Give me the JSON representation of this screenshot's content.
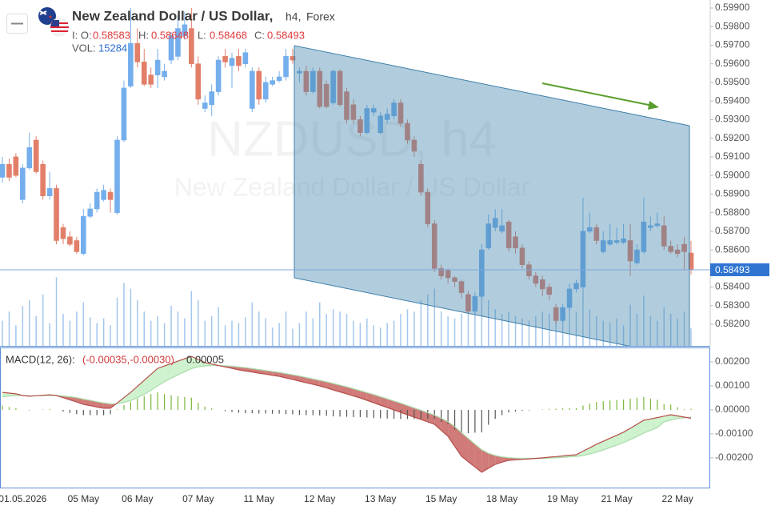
{
  "chart_data": {
    "type": "candlestick",
    "title": "New Zealand Dollar / US Dollar,",
    "timeframe": "h4,",
    "market": "Forex",
    "watermark_symbol": "NZDUSD, h4",
    "watermark_name": "New Zealand Dollar / US Dollar",
    "ohlc_labels": {
      "open": "I: O:",
      "high": "H:",
      "low": "L:",
      "close": "C:",
      "volume": "VOL:"
    },
    "up_color": "#74aeec",
    "down_color": "#e27f69",
    "volume_color": "#a3c6ee",
    "categories": [
      null,
      null,
      null,
      "01.05.2026",
      null,
      null,
      null,
      null,
      null,
      null,
      null,
      null,
      "05 May",
      null,
      null,
      null,
      null,
      null,
      null,
      null,
      "06 May",
      null,
      null,
      null,
      null,
      null,
      null,
      null,
      null,
      "07 May",
      null,
      null,
      null,
      null,
      null,
      null,
      null,
      null,
      "11 May",
      null,
      null,
      null,
      null,
      null,
      null,
      null,
      null,
      "12 May",
      null,
      null,
      null,
      null,
      null,
      null,
      null,
      null,
      "13 May",
      null,
      null,
      null,
      null,
      null,
      null,
      null,
      null,
      "15 May",
      null,
      null,
      null,
      null,
      null,
      null,
      null,
      null,
      "18 May",
      null,
      null,
      null,
      null,
      null,
      null,
      null,
      null,
      "19 May",
      null,
      null,
      null,
      null,
      null,
      null,
      null,
      "21 May",
      null,
      null,
      null,
      null,
      null,
      null,
      null,
      null,
      "22 May",
      null,
      null
    ],
    "open": [
      0.5899,
      0.5906,
      0.591,
      0.5887,
      0.5904,
      0.5919,
      0.5906,
      0.5889,
      0.5893,
      0.5872,
      0.5867,
      0.5865,
      0.5858,
      0.5878,
      0.5882,
      0.5887,
      0.5891,
      0.588,
      0.5919,
      0.5948,
      0.5971,
      0.5961,
      0.5954,
      0.5954,
      0.5953,
      0.5962,
      0.5964,
      0.5975,
      0.5979,
      0.596,
      0.5936,
      0.5938,
      0.5945,
      0.5964,
      0.5959,
      0.5964,
      0.596,
      0.5936,
      0.5956,
      0.5941,
      0.5949,
      0.5951,
      0.5953,
      0.5964,
      0.5955,
      0.5956,
      0.5945,
      0.5956,
      0.5949,
      0.5939,
      0.5956,
      0.5945,
      0.5938,
      0.593,
      0.5923,
      0.5934,
      0.5923,
      0.593,
      0.5932,
      0.5939,
      0.5928,
      0.5919,
      0.5906,
      0.5891,
      0.5874,
      0.585,
      0.5849,
      0.5845,
      0.5843,
      0.5836,
      0.5827,
      0.5835,
      0.5861,
      0.5872,
      0.587,
      0.5875,
      0.5867,
      0.5861,
      0.5852,
      0.5846,
      0.5844,
      0.584,
      0.5829,
      0.5822,
      0.5829,
      0.5839,
      0.584,
      0.587,
      0.5872,
      0.5859,
      0.5863,
      0.5864,
      0.5864,
      0.5865,
      0.5853,
      0.5859,
      0.5872,
      0.5873,
      0.5873,
      0.5862,
      0.586,
      0.5863,
      0.58583
    ],
    "high": [
      0.591,
      0.5909,
      0.5912,
      0.5906,
      0.5923,
      0.5921,
      0.5908,
      0.5902,
      0.5895,
      0.5874,
      0.587,
      0.5867,
      0.5882,
      0.5885,
      0.5893,
      0.5895,
      0.5893,
      0.5921,
      0.5951,
      0.599,
      0.5979,
      0.5968,
      0.5958,
      0.5968,
      0.596,
      0.5977,
      0.5986,
      0.5988,
      0.599,
      0.5964,
      0.5943,
      0.5949,
      0.5964,
      0.5968,
      0.5966,
      0.5968,
      0.5968,
      0.5958,
      0.5958,
      0.5953,
      0.5953,
      0.5956,
      0.5968,
      0.5968,
      0.5958,
      0.5959,
      0.5958,
      0.5958,
      0.5951,
      0.5957,
      0.5957,
      0.5947,
      0.5941,
      0.5932,
      0.5938,
      0.5938,
      0.5934,
      0.5936,
      0.5941,
      0.5941,
      0.593,
      0.5921,
      0.5908,
      0.5893,
      0.5876,
      0.5852,
      0.585,
      0.5846,
      0.5844,
      0.5838,
      0.5837,
      0.5863,
      0.5879,
      0.5882,
      0.5882,
      0.5876,
      0.587,
      0.5863,
      0.5854,
      0.5848,
      0.5846,
      0.5842,
      0.5831,
      0.5831,
      0.5842,
      0.5844,
      0.5888,
      0.588,
      0.5874,
      0.587,
      0.5874,
      0.5872,
      0.5874,
      0.5874,
      0.5863,
      0.5888,
      0.5878,
      0.588,
      0.5878,
      0.5865,
      0.5863,
      0.5867,
      0.58648
    ],
    "low": [
      0.5896,
      0.5897,
      0.5899,
      0.5885,
      0.5903,
      0.5901,
      0.5887,
      0.5887,
      0.5863,
      0.5863,
      0.5862,
      0.5858,
      0.5857,
      0.5877,
      0.588,
      0.5886,
      0.588,
      0.5879,
      0.5918,
      0.5947,
      0.5958,
      0.5948,
      0.5947,
      0.5947,
      0.5951,
      0.596,
      0.5962,
      0.5973,
      0.5958,
      0.5938,
      0.5934,
      0.5932,
      0.5943,
      0.5958,
      0.5947,
      0.5956,
      0.5958,
      0.5934,
      0.5938,
      0.5939,
      0.5948,
      0.595,
      0.5951,
      0.596,
      0.595,
      0.5943,
      0.5944,
      0.5936,
      0.5936,
      0.5938,
      0.5937,
      0.5928,
      0.5928,
      0.5921,
      0.5922,
      0.5932,
      0.5922,
      0.5928,
      0.593,
      0.5926,
      0.5917,
      0.591,
      0.5889,
      0.5872,
      0.5848,
      0.5844,
      0.5842,
      0.584,
      0.5834,
      0.5826,
      0.5826,
      0.5834,
      0.586,
      0.587,
      0.5869,
      0.5859,
      0.5858,
      0.585,
      0.5844,
      0.584,
      0.5835,
      0.5833,
      0.582,
      0.5821,
      0.5827,
      0.5837,
      0.5839,
      0.5869,
      0.5863,
      0.5858,
      0.5862,
      0.5863,
      0.5863,
      0.5846,
      0.5852,
      0.5858,
      0.587,
      0.5872,
      0.586,
      0.5858,
      0.5856,
      0.5849,
      0.58468
    ],
    "close": [
      0.5906,
      0.5899,
      0.59,
      0.5904,
      0.5915,
      0.5902,
      0.5889,
      0.5893,
      0.5865,
      0.5866,
      0.5863,
      0.5859,
      0.5878,
      0.5882,
      0.5891,
      0.5892,
      0.5887,
      0.5919,
      0.5947,
      0.5971,
      0.5961,
      0.5949,
      0.5949,
      0.5962,
      0.5956,
      0.5975,
      0.5979,
      0.5981,
      0.596,
      0.5941,
      0.5939,
      0.5945,
      0.5962,
      0.5961,
      0.5963,
      0.5959,
      0.5966,
      0.5956,
      0.5941,
      0.595,
      0.5951,
      0.5953,
      0.5964,
      0.5962,
      0.5956,
      0.5945,
      0.5956,
      0.5937,
      0.5937,
      0.5956,
      0.5938,
      0.593,
      0.593,
      0.5923,
      0.5936,
      0.5936,
      0.5932,
      0.5933,
      0.5939,
      0.5928,
      0.5919,
      0.5913,
      0.5891,
      0.5874,
      0.585,
      0.5846,
      0.5845,
      0.5843,
      0.5837,
      0.5827,
      0.5835,
      0.586,
      0.5874,
      0.5877,
      0.5873,
      0.5861,
      0.5861,
      0.5852,
      0.5846,
      0.5842,
      0.5839,
      0.5836,
      0.5822,
      0.5829,
      0.5839,
      0.5842,
      0.587,
      0.5872,
      0.5865,
      0.5865,
      0.5865,
      0.5865,
      0.5866,
      0.5854,
      0.586,
      0.5875,
      0.5873,
      0.5874,
      0.5862,
      0.5859,
      0.5858,
      0.5859,
      0.58493
    ],
    "volume": [
      22000,
      30000,
      18000,
      35000,
      40000,
      26000,
      45000,
      20000,
      60000,
      28000,
      22000,
      30000,
      38000,
      25000,
      20000,
      24000,
      18000,
      42000,
      55000,
      50000,
      40000,
      30000,
      22000,
      26000,
      20000,
      35000,
      30000,
      24000,
      48000,
      40000,
      22000,
      26000,
      34000,
      18000,
      22000,
      20000,
      25000,
      38000,
      30000,
      24000,
      16000,
      20000,
      30000,
      15000,
      20000,
      30000,
      24000,
      38000,
      28000,
      32000,
      30000,
      28000,
      22000,
      20000,
      24000,
      18000,
      16000,
      20000,
      22000,
      28000,
      32000,
      30000,
      40000,
      45000,
      50000,
      30000,
      26000,
      24000,
      28000,
      36000,
      30000,
      46000,
      40000,
      32000,
      28000,
      30000,
      26000,
      24000,
      22000,
      26000,
      30000,
      28000,
      34000,
      28000,
      36000,
      30000,
      50000,
      32000,
      26000,
      22000,
      20000,
      24000,
      18000,
      36000,
      28000,
      44000,
      26000,
      22000,
      34000,
      28000,
      24000,
      30000,
      15284
    ],
    "ylim": [
      0.58084,
      0.59943
    ],
    "yticks": [
      {
        "value": 0.599,
        "label": "0.59900"
      },
      {
        "value": 0.598,
        "label": "0.59800"
      },
      {
        "value": 0.597,
        "label": "0.59700"
      },
      {
        "value": 0.596,
        "label": "0.59600"
      },
      {
        "value": 0.595,
        "label": "0.59500"
      },
      {
        "value": 0.594,
        "label": "0.59400"
      },
      {
        "value": 0.593,
        "label": "0.59300"
      },
      {
        "value": 0.592,
        "label": "0.59200"
      },
      {
        "value": 0.591,
        "label": "0.59100"
      },
      {
        "value": 0.59,
        "label": "0.59000"
      },
      {
        "value": 0.589,
        "label": "0.58900"
      },
      {
        "value": 0.588,
        "label": "0.58800"
      },
      {
        "value": 0.587,
        "label": "0.58700"
      },
      {
        "value": 0.586,
        "label": "0.58600"
      },
      {
        "value": 0.585,
        "label": "0.58500"
      },
      {
        "value": 0.584,
        "label": "0.58400"
      },
      {
        "value": 0.583,
        "label": "0.58300"
      },
      {
        "value": 0.582,
        "label": "0.58200"
      }
    ],
    "macd": {
      "title": "MACD(12, 26):",
      "values_label": "(-0.00035,-0.00030)",
      "histogram_label": "0.00005",
      "ylim": [
        -0.00327,
        0.0026
      ],
      "yticks": [
        {
          "value": 0.002,
          "label": "0.00200"
        },
        {
          "value": 0.001,
          "label": "0.00100"
        },
        {
          "value": 0,
          "label": "0.00000"
        },
        {
          "value": -0.001,
          "label": "-0.00100"
        },
        {
          "value": -0.002,
          "label": "-0.00200"
        }
      ],
      "macd_color": "#b54d4a",
      "signal_color": "#a9dca9",
      "up_fill": "#c5f0c5",
      "down_fill": "#c86462",
      "hist_up_color": "#7bb83c",
      "hist_down_color": "#555555",
      "macd": [
        0.00073,
        0.0007,
        0.00067,
        0.0006,
        0.00057,
        0.00059,
        0.00061,
        0.00063,
        0.0006,
        0.00051,
        0.00042,
        0.00033,
        0.00023,
        0.00018,
        0.00012,
        7e-05,
        7e-05,
        0.00029,
        0.00051,
        0.00073,
        0.00098,
        0.00123,
        0.00148,
        0.00173,
        0.00183,
        0.00193,
        0.00203,
        0.00213,
        0.00223,
        0.0021,
        0.00197,
        0.00191,
        0.00185,
        0.00179,
        0.00173,
        0.00167,
        0.00162,
        0.00158,
        0.00153,
        0.00149,
        0.00144,
        0.0014,
        0.00133,
        0.00127,
        0.0012,
        0.00113,
        0.00107,
        0.001,
        0.00092,
        0.00083,
        0.00075,
        0.00067,
        0.00058,
        0.0005,
        0.0004,
        0.0003,
        0.0002,
        0.0001,
        0,
        -0.0001,
        -0.0002,
        -0.0003,
        -0.0004,
        -0.0005,
        -0.0006,
        -0.00085,
        -0.0011,
        -0.00152,
        -0.00193,
        -0.00216,
        -0.00238,
        -0.0026,
        -0.00243,
        -0.00227,
        -0.00218,
        -0.0021,
        -0.00208,
        -0.00206,
        -0.00204,
        -0.00202,
        -0.002,
        -0.00197,
        -0.00195,
        -0.00192,
        -0.00189,
        -0.00187,
        -0.00172,
        -0.00158,
        -0.00143,
        -0.00131,
        -0.00118,
        -0.00106,
        -0.00093,
        -0.00077,
        -0.0006,
        -0.00043,
        -0.00038,
        -0.00032,
        -0.00026,
        -0.0002,
        -0.00025,
        -0.0003,
        -0.00035
      ],
      "signal": [
        0.00055,
        0.00058,
        0.0006,
        0.0006,
        0.00059,
        0.00059,
        0.00059,
        0.0006,
        0.0006,
        0.00058,
        0.00055,
        0.00051,
        0.00045,
        0.0004,
        0.00034,
        0.00029,
        0.00025,
        0.00026,
        0.00031,
        0.00039,
        0.00051,
        0.00065,
        0.00082,
        0.001,
        0.00117,
        0.00132,
        0.00146,
        0.00159,
        0.00172,
        0.0018,
        0.00183,
        0.00185,
        0.00185,
        0.00184,
        0.00182,
        0.00179,
        0.00176,
        0.00172,
        0.00168,
        0.00164,
        0.0016,
        0.00156,
        0.00151,
        0.00146,
        0.00141,
        0.00135,
        0.00129,
        0.00123,
        0.00117,
        0.0011,
        0.00103,
        0.00096,
        0.00088,
        0.0008,
        0.00072,
        0.00064,
        0.00055,
        0.00046,
        0.00037,
        0.00028,
        0.00018,
        8e-05,
        -2e-05,
        -0.00012,
        -0.00022,
        -0.00035,
        -0.0005,
        -0.0007,
        -0.00095,
        -0.00119,
        -0.00143,
        -0.00166,
        -0.00181,
        -0.0019,
        -0.00196,
        -0.00199,
        -0.00201,
        -0.00202,
        -0.00202,
        -0.00202,
        -0.00202,
        -0.00201,
        -0.002,
        -0.00198,
        -0.00196,
        -0.00194,
        -0.0019,
        -0.00184,
        -0.00176,
        -0.00167,
        -0.00157,
        -0.00147,
        -0.00136,
        -0.00124,
        -0.00111,
        -0.00097,
        -0.00085,
        -0.00074,
        -0.0005,
        -0.00042,
        -0.00036,
        -0.00033,
        -0.0003
      ],
      "histogram": [
        0.00018,
        0.00012,
        7e-05,
        0,
        -2e-05,
        0,
        2e-05,
        3e-05,
        0,
        -7e-05,
        -0.00013,
        -0.00018,
        -0.00022,
        -0.00022,
        -0.00022,
        -0.00022,
        -0.00018,
        3e-05,
        0.0002,
        0.00034,
        0.00047,
        0.00058,
        0.00066,
        0.00073,
        0.00066,
        0.00061,
        0.00057,
        0.00054,
        0.00051,
        0.0003,
        0.00014,
        6e-05,
        0,
        -5e-05,
        -9e-05,
        -0.00012,
        -0.00014,
        -0.00014,
        -0.00015,
        -0.00015,
        -0.00016,
        -0.00016,
        -0.00018,
        -0.00019,
        -0.00021,
        -0.00022,
        -0.00022,
        -0.00023,
        -0.00025,
        -0.00027,
        -0.00028,
        -0.00029,
        -0.0003,
        -0.0003,
        -0.00032,
        -0.00034,
        -0.00035,
        -0.00036,
        -0.00037,
        -0.00038,
        -0.00038,
        -0.00038,
        -0.00038,
        -0.00038,
        -0.00038,
        -0.0005,
        -0.0006,
        -0.00082,
        -0.00098,
        -0.00097,
        -0.00095,
        -0.00094,
        -0.00062,
        -0.00037,
        -0.00022,
        -0.00011,
        -7e-05,
        -4e-05,
        -2e-05,
        0,
        2e-05,
        4e-05,
        5e-05,
        6e-05,
        7e-05,
        7e-05,
        0.00018,
        0.00026,
        0.00033,
        0.00036,
        0.00039,
        0.00041,
        0.00043,
        0.00047,
        0.00051,
        0.00054,
        0.00047,
        0.00042,
        0.00024,
        0.00022,
        0.00011,
        3e-05,
        5e-05
      ]
    }
  }
}
